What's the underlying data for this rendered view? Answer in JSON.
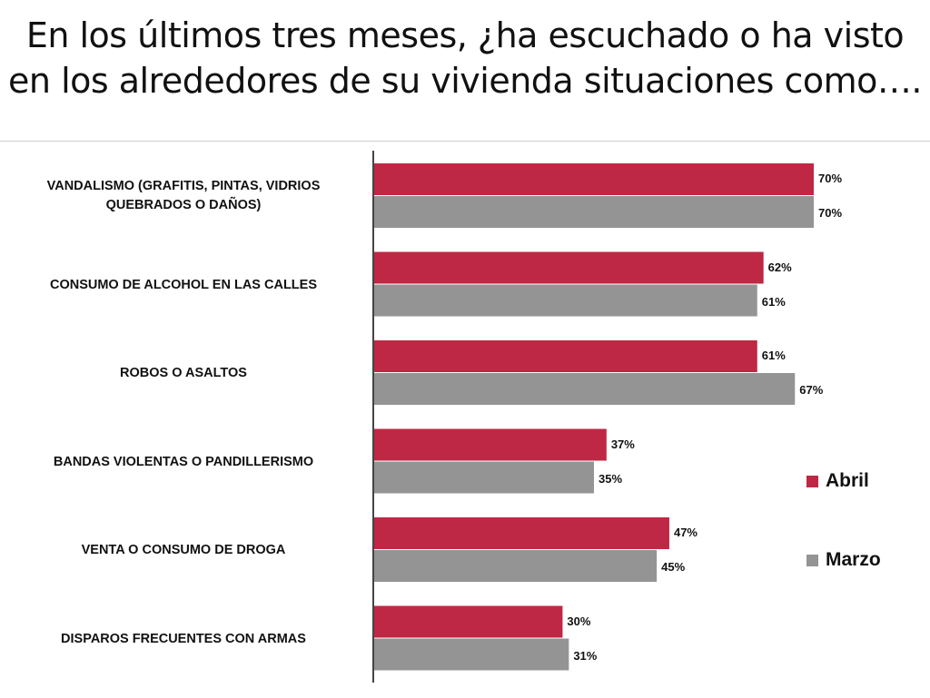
{
  "title": {
    "line1": "En los últimos tres meses, ¿ha escuchado o ha visto",
    "line2": "en los alrededores de su vivienda situaciones como…."
  },
  "chart_data": {
    "type": "bar",
    "orientation": "horizontal",
    "categories": [
      "VANDALISMO (GRAFITIS, PINTAS, VIDRIOS QUEBRADOS O DAÑOS)",
      "CONSUMO DE ALCOHOL EN LAS CALLES",
      "ROBOS O ASALTOS",
      "BANDAS VIOLENTAS O PANDILLERISMO",
      "VENTA O CONSUMO DE DROGA",
      "DISPAROS FRECUENTES CON ARMAS"
    ],
    "series": [
      {
        "name": "Abril",
        "color": "#be2844",
        "values": [
          70,
          62,
          61,
          37,
          47,
          30
        ],
        "labels": [
          "70%",
          "62%",
          "61%",
          "37%",
          "47%",
          "30%"
        ]
      },
      {
        "name": "Marzo",
        "color": "#949494",
        "values": [
          70,
          61,
          67,
          35,
          45,
          31
        ],
        "labels": [
          "70%",
          "61%",
          "67%",
          "35%",
          "45%",
          "31%"
        ]
      }
    ],
    "xlim": [
      0,
      70
    ],
    "grid": false,
    "legend_position": "right"
  }
}
